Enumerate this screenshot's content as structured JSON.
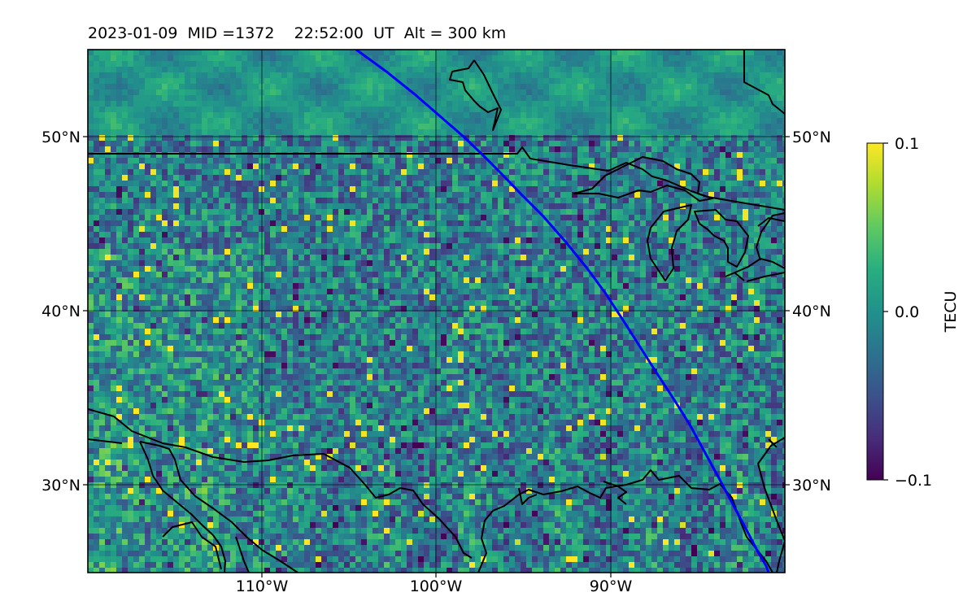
{
  "title": {
    "date": "2023-01-09",
    "mid": "MID =1372",
    "time": "22:52:00",
    "ut": "UT",
    "alt": "Alt = 300 km"
  },
  "map": {
    "lat_ticks": [
      {
        "lat": 50,
        "label": "50°N"
      },
      {
        "lat": 40,
        "label": "40°N"
      },
      {
        "lat": 30,
        "label": "30°N"
      }
    ],
    "lon_ticks": [
      {
        "lon": -110,
        "label": "110°W"
      },
      {
        "lon": -100,
        "label": "100°W"
      },
      {
        "lon": -90,
        "label": "90°W"
      }
    ],
    "lon_range": [
      -120,
      -80
    ],
    "lat_range": [
      25,
      55
    ],
    "track_color": "#0000ff",
    "coast_color": "#000000",
    "colormap": "viridis"
  },
  "colorbar": {
    "label": "TECU",
    "ticks": [
      {
        "value": 0.1,
        "label": "0.1"
      },
      {
        "value": 0.0,
        "label": "0.0"
      },
      {
        "value": -0.1,
        "label": "−0.1"
      }
    ],
    "range": [
      -0.1,
      0.1
    ]
  }
}
